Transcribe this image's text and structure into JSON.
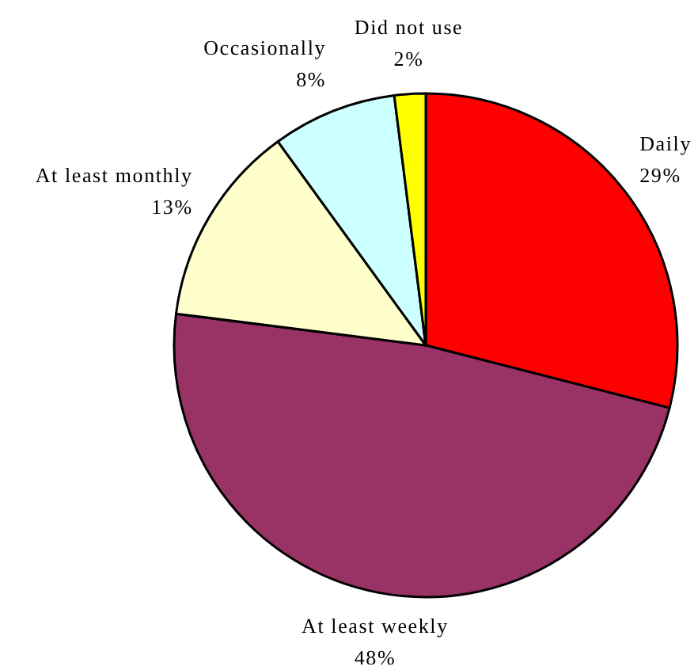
{
  "chart_data": {
    "type": "pie",
    "categories": [
      "Daily",
      "At least weekly",
      "At least monthly",
      "Occasionally",
      "Did not use"
    ],
    "values": [
      29,
      48,
      13,
      8,
      2
    ],
    "colors": [
      "#ff0000",
      "#993366",
      "#ffffcc",
      "#ccffff",
      "#ffff00"
    ],
    "value_labels": [
      "29%",
      "48%",
      "13%",
      "8%",
      "2%"
    ]
  }
}
